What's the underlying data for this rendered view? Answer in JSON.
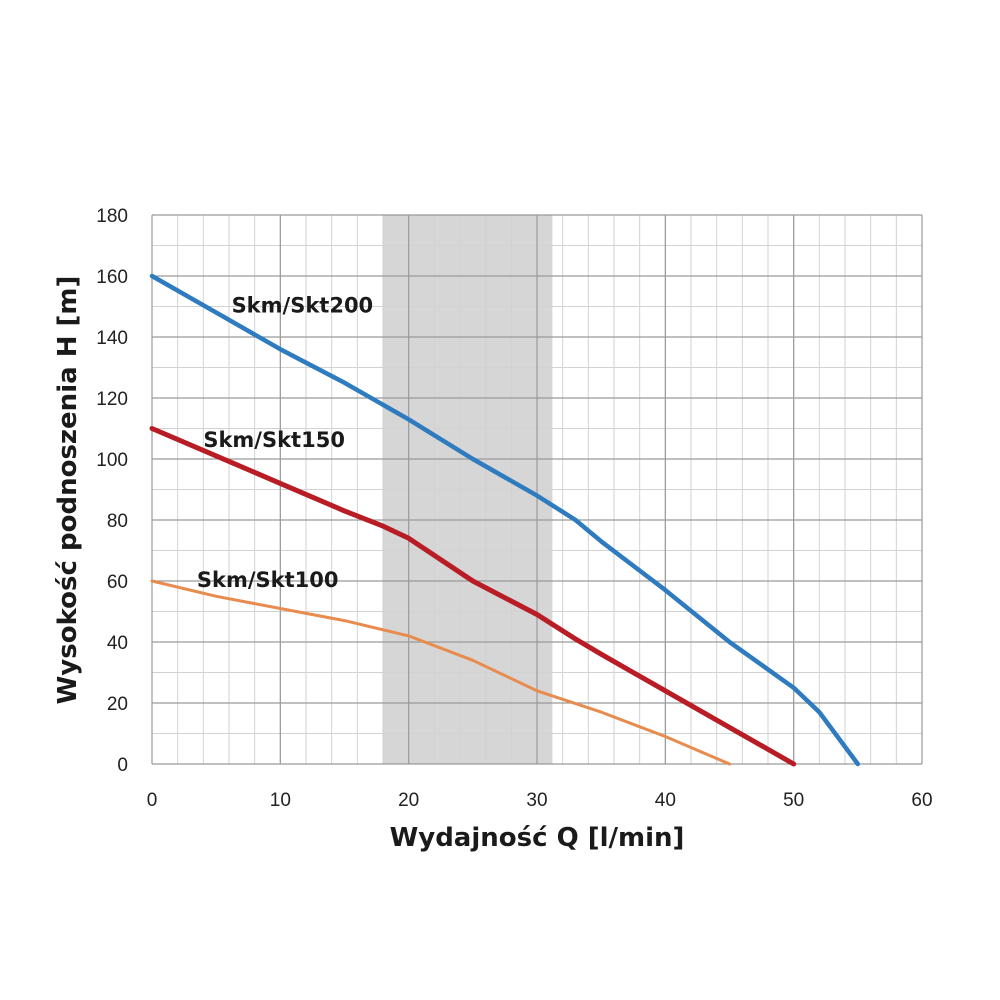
{
  "chart_data": {
    "type": "line",
    "title": "",
    "xlabel": "Wydajność Q [l/min]",
    "ylabel": "Wysokość podnoszenia H [m]",
    "xlim": [
      0,
      60
    ],
    "ylim": [
      0,
      180
    ],
    "x_ticks": [
      0,
      10,
      20,
      30,
      40,
      50,
      60
    ],
    "y_ticks": [
      0,
      20,
      40,
      60,
      80,
      100,
      120,
      140,
      160,
      180
    ],
    "x_minor_step": 2,
    "y_minor_step": 10,
    "grid": true,
    "highlight_band": {
      "x_from": 18,
      "x_to": 31.2,
      "color": "#d6d6d6"
    },
    "series": [
      {
        "name": "Skm/Skt200",
        "color": "#2e7bbf",
        "x": [
          0,
          5,
          10,
          15,
          20,
          25,
          30,
          33,
          35,
          40,
          45,
          50,
          52,
          55
        ],
        "y": [
          160,
          148,
          136,
          125,
          113,
          100,
          88,
          80,
          73,
          57,
          40,
          25,
          17,
          0
        ]
      },
      {
        "name": "Skm/Skt150",
        "color": "#b81c25",
        "x": [
          0,
          5,
          10,
          15,
          18,
          20,
          25,
          30,
          33,
          35,
          40,
          45,
          50
        ],
        "y": [
          110,
          101,
          92,
          83,
          78,
          74,
          60,
          49,
          41,
          36,
          24,
          12,
          0
        ]
      },
      {
        "name": "Skm/Skt100",
        "color": "#e88b4e",
        "x": [
          0,
          5,
          10,
          15,
          20,
          25,
          30,
          35,
          40,
          45
        ],
        "y": [
          60,
          55,
          51,
          47,
          42,
          34,
          24,
          17,
          9,
          0
        ]
      }
    ]
  }
}
